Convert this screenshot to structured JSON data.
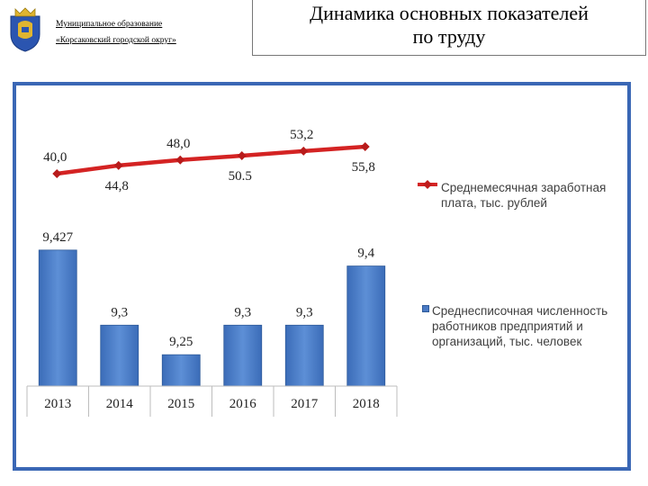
{
  "header": {
    "org_line1": "Муниципальное образование",
    "org_line2": "«Корсаковский городской округ»",
    "title_line1": "Динамика основных показателей",
    "title_line2": "по труду"
  },
  "colors": {
    "frame": "#3a67b5",
    "bar": "#4f80c7",
    "line": "#d42323"
  },
  "chart_data": {
    "type": "bar",
    "categories": [
      "2013",
      "2014",
      "2015",
      "2016",
      "2017",
      "2018"
    ],
    "series": [
      {
        "name": "Среднесписочная численность работников предприятий и организаций, тыс. человек",
        "type": "bar",
        "values": [
          9.427,
          9.3,
          9.25,
          9.3,
          9.3,
          9.4
        ],
        "labels": [
          "9,427",
          "9,3",
          "9,25",
          "9,3",
          "9,3",
          "9,4"
        ]
      },
      {
        "name": "Среднемесячная заработная плата, тыс. рублей",
        "type": "line",
        "values": [
          40.0,
          44.8,
          48.0,
          50.5,
          53.2,
          55.8
        ],
        "labels": [
          "40,0",
          "44,8",
          "48,0",
          "50.5",
          "53,2",
          "55,8"
        ]
      }
    ],
    "legend": [
      "Среднемесячная заработная плата, тыс. рублей",
      "Среднесписочная численность работников предприятий и организаций, тыс. человек"
    ],
    "legend_position": "right",
    "grid": false
  }
}
